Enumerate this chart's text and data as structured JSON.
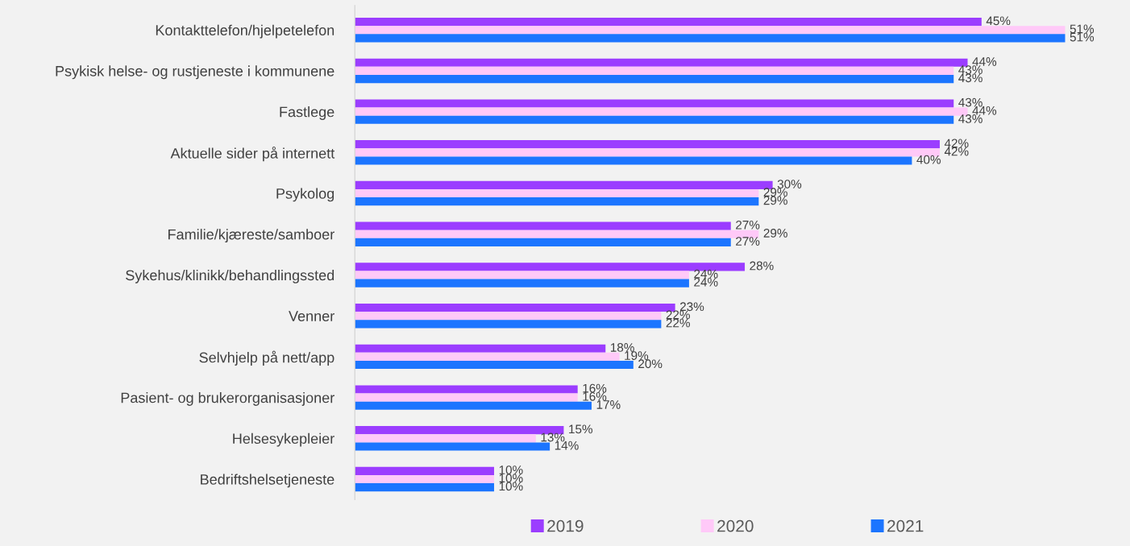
{
  "chart_data": {
    "type": "bar",
    "orientation": "horizontal",
    "categories": [
      "Kontakttelefon/hjelpetelefon",
      "Psykisk helse- og rustjeneste i kommunene",
      "Fastlege",
      "Aktuelle sider på internett",
      "Psykolog",
      "Familie/kjæreste/samboer",
      "Sykehus/klinikk/behandlingssted",
      "Venner",
      "Selvhjelp på nett/app",
      "Pasient- og brukerorganisasjoner",
      "Helsesykepleier",
      "Bedriftshelsetjeneste"
    ],
    "series": [
      {
        "name": "2019",
        "color": "#9b3dff",
        "values": [
          45,
          44,
          43,
          42,
          30,
          27,
          28,
          23,
          18,
          16,
          15,
          10
        ],
        "value_labels": [
          "45%",
          "44%",
          "43%",
          "42%",
          "30%",
          "27%",
          "28%",
          "23%",
          "18%",
          "16%",
          "15%",
          "10%"
        ]
      },
      {
        "name": "2020",
        "color": "#ffc9f8",
        "values": [
          51,
          43,
          44,
          42,
          29,
          29,
          24,
          22,
          19,
          16,
          13,
          10
        ],
        "value_labels": [
          "51%",
          "43%",
          "44%",
          "42%",
          "29%",
          "29%",
          "24%",
          "22%",
          "19%",
          "16%",
          "13%",
          "10%"
        ]
      },
      {
        "name": "2021",
        "color": "#1c75ff",
        "values": [
          51,
          43,
          43,
          40,
          29,
          27,
          24,
          22,
          20,
          17,
          14,
          10
        ],
        "value_labels": [
          "51%",
          "43%",
          "43%",
          "40%",
          "29%",
          "27%",
          "24%",
          "22%",
          "20%",
          "17%",
          "14%",
          "10%"
        ]
      }
    ],
    "legend": "bottom",
    "grid": false
  }
}
